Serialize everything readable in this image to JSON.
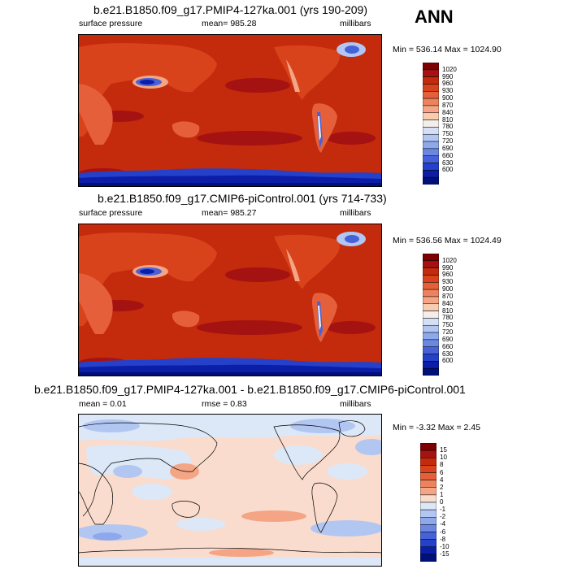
{
  "season": "ANN",
  "panels": [
    {
      "title": "b.e21.B1850.f09_g17.PMIP4-127ka.001 (yrs 190-209)",
      "variable": "surface pressure",
      "stat": "mean= 985.28",
      "units": "millibars",
      "minmax": "Min = 536.14 Max = 1024.90"
    },
    {
      "title": "b.e21.B1850.f09_g17.CMIP6-piControl.001 (yrs 714-733)",
      "variable": "surface pressure",
      "stat": "mean= 985.27",
      "units": "millibars",
      "minmax": "Min = 536.56 Max = 1024.49"
    },
    {
      "title": "b.e21.B1850.f09_g17.PMIP4-127ka.001 - b.e21.B1850.f09_g17.CMIP6-piControl.001",
      "variable": "mean =  0.01",
      "stat": "rmse =  0.83",
      "units": "millibars",
      "minmax": "Min =  -3.32 Max =   2.45"
    }
  ],
  "colorbar_abs": {
    "labels": [
      "1020",
      "990",
      "960",
      "930",
      "900",
      "870",
      "840",
      "810",
      "780",
      "750",
      "720",
      "690",
      "660",
      "630",
      "600"
    ],
    "colors": [
      "#7f0000",
      "#a51212",
      "#c42a0c",
      "#d8431c",
      "#e5603a",
      "#ee825d",
      "#f4a585",
      "#f9cbb1",
      "#f4ede9",
      "#d5e0f5",
      "#b2c6f2",
      "#8ea8ec",
      "#6b87e3",
      "#4762d8",
      "#2540c9",
      "#0c1ea8",
      "#00107a"
    ]
  },
  "colorbar_diff": {
    "labels": [
      "15",
      "10",
      "8",
      "6",
      "4",
      "2",
      "1",
      "0",
      "-1",
      "-2",
      "-4",
      "-6",
      "-8",
      "-10",
      "-15"
    ],
    "colors": [
      "#7f0000",
      "#a51212",
      "#c42a0c",
      "#d8431c",
      "#e5603a",
      "#ee825d",
      "#f4a585",
      "#f9dccd",
      "#dce8f7",
      "#b2c6f2",
      "#8ea8ec",
      "#6b87e3",
      "#4762d8",
      "#2540c9",
      "#0c1ea8",
      "#00107a"
    ]
  }
}
